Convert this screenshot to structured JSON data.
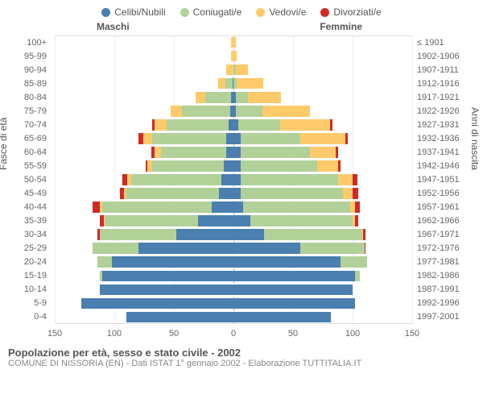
{
  "legend": [
    {
      "label": "Celibi/Nubili",
      "color": "#4a7fb0"
    },
    {
      "label": "Coniugati/e",
      "color": "#b2d199"
    },
    {
      "label": "Vedovi/e",
      "color": "#fdca6b"
    },
    {
      "label": "Divorziati/e",
      "color": "#cf2a27"
    }
  ],
  "headers": {
    "male": "Maschi",
    "female": "Femmine"
  },
  "axis_labels": {
    "left": "Fasce di età",
    "right": "Anni di nascita"
  },
  "scale_max": 150,
  "x_ticks": [
    150,
    100,
    50,
    0,
    50,
    100,
    150
  ],
  "rows": [
    {
      "age": "100+",
      "birth": "≤ 1901",
      "m": [
        0,
        0,
        2,
        0
      ],
      "f": [
        0,
        0,
        2,
        0
      ]
    },
    {
      "age": "95-99",
      "birth": "1902-1906",
      "m": [
        0,
        0,
        2,
        0
      ],
      "f": [
        0,
        0,
        3,
        0
      ]
    },
    {
      "age": "90-94",
      "birth": "1907-1911",
      "m": [
        0,
        0,
        6,
        0
      ],
      "f": [
        0,
        2,
        10,
        0
      ]
    },
    {
      "age": "85-89",
      "birth": "1912-1916",
      "m": [
        1,
        6,
        6,
        0
      ],
      "f": [
        0,
        3,
        22,
        0
      ]
    },
    {
      "age": "80-84",
      "birth": "1917-1921",
      "m": [
        2,
        22,
        8,
        0
      ],
      "f": [
        2,
        10,
        28,
        0
      ]
    },
    {
      "age": "75-79",
      "birth": "1922-1926",
      "m": [
        3,
        40,
        10,
        0
      ],
      "f": [
        2,
        22,
        40,
        0
      ]
    },
    {
      "age": "70-74",
      "birth": "1927-1931",
      "m": [
        4,
        52,
        10,
        2
      ],
      "f": [
        4,
        35,
        42,
        2
      ]
    },
    {
      "age": "65-69",
      "birth": "1932-1936",
      "m": [
        6,
        62,
        8,
        4
      ],
      "f": [
        6,
        50,
        38,
        2
      ]
    },
    {
      "age": "60-64",
      "birth": "1937-1941",
      "m": [
        6,
        55,
        5,
        3
      ],
      "f": [
        6,
        58,
        22,
        2
      ]
    },
    {
      "age": "55-59",
      "birth": "1942-1946",
      "m": [
        8,
        60,
        4,
        2
      ],
      "f": [
        6,
        64,
        18,
        2
      ]
    },
    {
      "age": "50-54",
      "birth": "1947-1951",
      "m": [
        10,
        76,
        3,
        4
      ],
      "f": [
        6,
        82,
        12,
        4
      ]
    },
    {
      "age": "45-49",
      "birth": "1952-1956",
      "m": [
        12,
        78,
        2,
        3
      ],
      "f": [
        6,
        86,
        8,
        5
      ]
    },
    {
      "age": "40-44",
      "birth": "1957-1961",
      "m": [
        18,
        92,
        2,
        6
      ],
      "f": [
        8,
        90,
        4,
        4
      ]
    },
    {
      "age": "35-39",
      "birth": "1962-1966",
      "m": [
        30,
        78,
        1,
        3
      ],
      "f": [
        14,
        86,
        2,
        3
      ]
    },
    {
      "age": "30-34",
      "birth": "1967-1971",
      "m": [
        48,
        64,
        0,
        2
      ],
      "f": [
        26,
        82,
        1,
        2
      ]
    },
    {
      "age": "25-29",
      "birth": "1972-1976",
      "m": [
        80,
        38,
        0,
        0
      ],
      "f": [
        56,
        54,
        0,
        1
      ]
    },
    {
      "age": "20-24",
      "birth": "1977-1981",
      "m": [
        102,
        12,
        0,
        0
      ],
      "f": [
        90,
        22,
        0,
        0
      ]
    },
    {
      "age": "15-19",
      "birth": "1982-1986",
      "m": [
        110,
        2,
        0,
        0
      ],
      "f": [
        102,
        4,
        0,
        0
      ]
    },
    {
      "age": "10-14",
      "birth": "1987-1991",
      "m": [
        112,
        0,
        0,
        0
      ],
      "f": [
        100,
        0,
        0,
        0
      ]
    },
    {
      "age": "5-9",
      "birth": "1992-1996",
      "m": [
        128,
        0,
        0,
        0
      ],
      "f": [
        102,
        0,
        0,
        0
      ]
    },
    {
      "age": "0-4",
      "birth": "1997-2001",
      "m": [
        90,
        0,
        0,
        0
      ],
      "f": [
        82,
        0,
        0,
        0
      ]
    }
  ],
  "colors": {
    "single": "#4a7fb0",
    "married": "#b2d199",
    "widow": "#fdca6b",
    "divorced": "#cf2a27",
    "grid": "#eeeeee",
    "centerline": "#bbbbbb"
  },
  "caption": {
    "title": "Popolazione per età, sesso e stato civile - 2002",
    "sub": "COMUNE DI NISSORIA (EN) - Dati ISTAT 1° gennaio 2002 - Elaborazione TUTTITALIA.IT"
  }
}
